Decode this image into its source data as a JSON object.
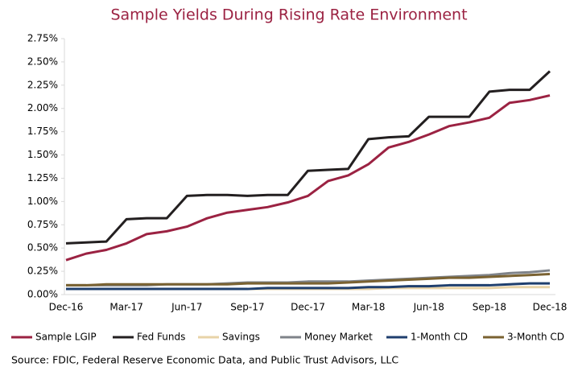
{
  "chart_data": {
    "type": "line",
    "title": "Sample Yields During Rising Rate Environment",
    "source": "Source: FDIC, Federal Reserve Economic Data, and Public Trust Advisors, LLC",
    "categories": [
      "Dec-16",
      null,
      null,
      "Mar-17",
      null,
      null,
      "Jun-17",
      null,
      null,
      "Sep-17",
      null,
      null,
      "Dec-17",
      null,
      null,
      "Mar-18",
      null,
      null,
      "Jun-18",
      null,
      null,
      "Sep-18",
      null,
      null,
      "Dec-18"
    ],
    "ylim": [
      0,
      2.75
    ],
    "yticks": [
      {
        "value": 0,
        "label": "0.00%"
      },
      {
        "value": 0.25,
        "label": "0.25%"
      },
      {
        "value": 0.5,
        "label": "0.50%"
      },
      {
        "value": 0.75,
        "label": "0.75%"
      },
      {
        "value": 1,
        "label": "1.00%"
      },
      {
        "value": 1.25,
        "label": "1.25%"
      },
      {
        "value": 1.5,
        "label": "1.50%"
      },
      {
        "value": 1.75,
        "label": "1.75%"
      },
      {
        "value": 2,
        "label": "2.00%"
      },
      {
        "value": 2.25,
        "label": "2.25%"
      },
      {
        "value": 2.5,
        "label": "2.50%"
      },
      {
        "value": 2.75,
        "label": "2.75%"
      }
    ],
    "legend": "bottom",
    "series": [
      {
        "name": "Sample LGIP",
        "color": "#9b2242",
        "values": [
          0.37,
          0.44,
          0.48,
          0.55,
          0.65,
          0.68,
          0.73,
          0.82,
          0.88,
          0.91,
          0.94,
          0.99,
          1.06,
          1.22,
          1.28,
          1.4,
          1.58,
          1.64,
          1.72,
          1.81,
          1.85,
          1.9,
          2.06,
          2.09,
          2.14
        ]
      },
      {
        "name": "Fed Funds",
        "color": "#231f20",
        "values": [
          0.55,
          0.56,
          0.57,
          0.81,
          0.82,
          0.82,
          1.06,
          1.07,
          1.07,
          1.06,
          1.07,
          1.07,
          1.33,
          1.34,
          1.35,
          1.67,
          1.69,
          1.7,
          1.91,
          1.91,
          1.91,
          2.18,
          2.2,
          2.2,
          2.4
        ]
      },
      {
        "name": "Savings",
        "color": "#e8d3a8",
        "values": [
          0.06,
          0.06,
          0.06,
          0.06,
          0.06,
          0.06,
          0.06,
          0.06,
          0.06,
          0.06,
          0.06,
          0.06,
          0.06,
          0.06,
          0.06,
          0.06,
          0.07,
          0.07,
          0.07,
          0.07,
          0.07,
          0.07,
          0.08,
          0.08,
          0.08
        ]
      },
      {
        "name": "Money Market",
        "color": "#7f8389",
        "values": [
          0.1,
          0.1,
          0.1,
          0.1,
          0.1,
          0.11,
          0.11,
          0.11,
          0.12,
          0.13,
          0.13,
          0.13,
          0.14,
          0.14,
          0.14,
          0.15,
          0.16,
          0.17,
          0.18,
          0.19,
          0.2,
          0.21,
          0.23,
          0.24,
          0.26
        ]
      },
      {
        "name": "1-Month CD",
        "color": "#1f3f6e",
        "values": [
          0.06,
          0.06,
          0.06,
          0.06,
          0.06,
          0.06,
          0.06,
          0.06,
          0.06,
          0.06,
          0.07,
          0.07,
          0.07,
          0.07,
          0.07,
          0.08,
          0.08,
          0.09,
          0.09,
          0.1,
          0.1,
          0.1,
          0.11,
          0.12,
          0.12
        ]
      },
      {
        "name": "3-Month CD",
        "color": "#7a6231",
        "values": [
          0.1,
          0.1,
          0.11,
          0.11,
          0.11,
          0.11,
          0.11,
          0.11,
          0.11,
          0.12,
          0.12,
          0.12,
          0.12,
          0.12,
          0.13,
          0.14,
          0.15,
          0.16,
          0.17,
          0.18,
          0.18,
          0.19,
          0.2,
          0.21,
          0.22
        ]
      }
    ]
  }
}
